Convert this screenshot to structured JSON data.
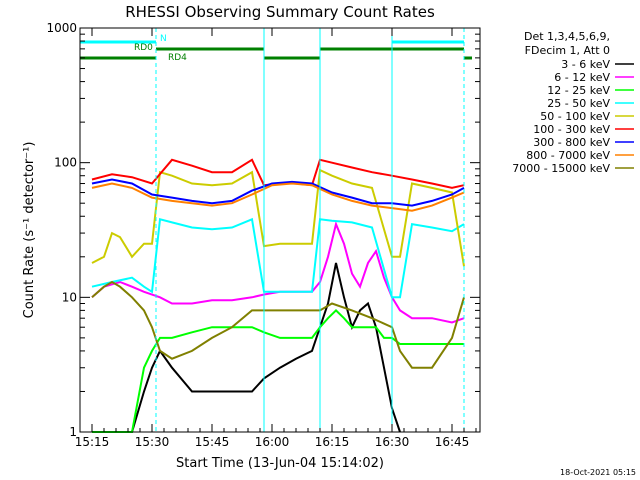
{
  "chart_data": {
    "type": "line",
    "title": "RHESSI Observing Summary Count Rates",
    "xlabel": "Start Time (13-Jun-04 15:14:02)",
    "ylabel": "Count Rate (s⁻¹ detector⁻¹)",
    "yscale": "log",
    "ylim": [
      1,
      1000
    ],
    "xlim_minutes_after_1500": [
      12,
      95
    ],
    "x_ticks": [
      {
        "minutes_after_1500": 15,
        "label": "15:15"
      },
      {
        "minutes_after_1500": 30,
        "label": "15:30"
      },
      {
        "minutes_after_1500": 45,
        "label": "15:45"
      },
      {
        "minutes_after_1500": 60,
        "label": "16:00"
      },
      {
        "minutes_after_1500": 75,
        "label": "16:15"
      },
      {
        "minutes_after_1500": 90,
        "label": "16:30"
      },
      {
        "minutes_after_1500": 105,
        "label": "16:45"
      }
    ],
    "y_ticks": [
      {
        "value": 1,
        "label": "1"
      },
      {
        "value": 10,
        "label": "10"
      },
      {
        "value": 100,
        "label": "100"
      },
      {
        "value": 1000,
        "label": "1000"
      }
    ],
    "legend_header": [
      "Det 1,3,4,5,6,9,",
      "FDecim 1, Att 0"
    ],
    "legend_placement": "right",
    "series": [
      {
        "name": "3 - 6 keV",
        "color": "#000000",
        "t": [
          15,
          20,
          25,
          28,
          30,
          32,
          35,
          40,
          45,
          50,
          55,
          58,
          62,
          66,
          70,
          72,
          74,
          76,
          78,
          80,
          82,
          84,
          86,
          88,
          90,
          92
        ],
        "y": [
          1,
          1,
          1,
          2,
          3,
          4,
          3,
          2,
          2,
          2,
          2,
          2.5,
          3,
          3.5,
          4,
          6,
          9,
          18,
          10,
          6,
          8,
          9,
          6,
          3,
          1.5,
          1
        ]
      },
      {
        "name": "6 - 12 keV",
        "color": "#ff00ff",
        "t": [
          15,
          18,
          22,
          25,
          28,
          32,
          35,
          40,
          45,
          50,
          55,
          58,
          62,
          66,
          70,
          72,
          74,
          76,
          78,
          80,
          82,
          84,
          86,
          88,
          90,
          92,
          95,
          100,
          105,
          108
        ],
        "y": [
          10,
          12,
          13,
          12,
          11,
          10,
          9,
          9,
          9.5,
          9.5,
          10,
          10.5,
          11,
          11,
          11,
          13,
          20,
          35,
          25,
          15,
          12,
          18,
          22,
          14,
          10,
          8,
          7,
          7,
          6.5,
          7
        ]
      },
      {
        "name": "12 - 25 keV",
        "color": "#00ff00",
        "t": [
          15,
          20,
          25,
          28,
          30,
          32,
          35,
          40,
          45,
          50,
          55,
          58,
          62,
          66,
          70,
          72,
          74,
          76,
          78,
          80,
          82,
          84,
          86,
          88,
          90,
          92,
          95,
          100,
          105,
          108
        ],
        "y": [
          1,
          1,
          1,
          3,
          4,
          5,
          5,
          5.5,
          6,
          6,
          6,
          5.5,
          5,
          5,
          5,
          6,
          7,
          8,
          7,
          6,
          6,
          6,
          6,
          5,
          5,
          4.5,
          4.5,
          4.5,
          4.5,
          4.5
        ]
      },
      {
        "name": "25 - 50 keV",
        "color": "#00ffff",
        "t": [
          15,
          20,
          25,
          28,
          30,
          32,
          35,
          40,
          45,
          50,
          55,
          58,
          62,
          66,
          70,
          72,
          75,
          80,
          85,
          90,
          92,
          95,
          100,
          105,
          108
        ],
        "y": [
          12,
          13,
          14,
          12,
          11,
          38,
          36,
          33,
          32,
          33,
          38,
          11,
          11,
          11,
          11,
          38,
          37,
          36,
          33,
          10,
          10,
          35,
          33,
          31,
          35
        ]
      },
      {
        "name": "50 - 100 keV",
        "color": "#cccc00",
        "t": [
          15,
          18,
          20,
          22,
          25,
          28,
          30,
          32,
          35,
          40,
          45,
          50,
          55,
          58,
          62,
          66,
          70,
          72,
          75,
          80,
          85,
          90,
          92,
          95,
          100,
          105,
          108
        ],
        "y": [
          18,
          20,
          30,
          28,
          20,
          25,
          25,
          85,
          80,
          70,
          68,
          70,
          85,
          24,
          25,
          25,
          25,
          88,
          80,
          70,
          65,
          20,
          20,
          70,
          65,
          60,
          17
        ]
      },
      {
        "name": "100 - 300 keV",
        "color": "#ff0000",
        "t": [
          15,
          20,
          25,
          30,
          35,
          40,
          45,
          50,
          55,
          58,
          62,
          66,
          70,
          72,
          75,
          80,
          85,
          90,
          95,
          100,
          105,
          108
        ],
        "y": [
          75,
          82,
          78,
          70,
          105,
          95,
          85,
          85,
          105,
          68,
          70,
          70,
          68,
          105,
          100,
          92,
          85,
          80,
          75,
          70,
          65,
          68
        ]
      },
      {
        "name": "300 - 800 keV",
        "color": "#0000ff",
        "t": [
          15,
          20,
          25,
          30,
          35,
          40,
          45,
          50,
          55,
          60,
          65,
          70,
          75,
          80,
          85,
          90,
          95,
          100,
          105,
          108
        ],
        "y": [
          70,
          75,
          70,
          58,
          55,
          52,
          50,
          52,
          62,
          70,
          72,
          70,
          60,
          55,
          50,
          50,
          48,
          52,
          58,
          65
        ]
      },
      {
        "name": "800 - 7000 keV",
        "color": "#ff8000",
        "t": [
          15,
          20,
          25,
          30,
          35,
          40,
          45,
          50,
          55,
          60,
          65,
          70,
          75,
          80,
          85,
          90,
          95,
          100,
          105,
          108
        ],
        "y": [
          65,
          70,
          65,
          55,
          52,
          50,
          48,
          50,
          58,
          68,
          70,
          68,
          58,
          52,
          48,
          46,
          44,
          48,
          55,
          60
        ]
      },
      {
        "name": "7000 - 15000 keV",
        "color": "#808000",
        "t": [
          15,
          18,
          20,
          22,
          25,
          28,
          30,
          32,
          35,
          40,
          45,
          50,
          55,
          58,
          62,
          66,
          70,
          72,
          75,
          80,
          85,
          90,
          92,
          95,
          100,
          105,
          108
        ],
        "y": [
          10,
          12,
          13,
          12,
          10,
          8,
          6,
          4,
          3.5,
          4,
          5,
          6,
          8,
          8,
          8,
          8,
          8,
          8,
          9,
          8,
          7,
          6,
          4,
          3,
          3,
          5,
          10
        ]
      }
    ],
    "state_bars": [
      {
        "label": "N",
        "color": "#00ffff",
        "segments": [
          [
            12,
            31
          ],
          [
            90,
            108
          ]
        ]
      },
      {
        "label": "RD0",
        "color": "#008000",
        "segments": [
          [
            31,
            58
          ],
          [
            72,
            108
          ]
        ]
      },
      {
        "label": "RD4",
        "color": "#008000",
        "segments": [
          [
            12,
            31
          ],
          [
            58,
            72
          ],
          [
            108,
            110
          ]
        ]
      }
    ],
    "vlines": [
      {
        "minutes_after_1500": 31,
        "color": "#00ffff",
        "style": "dashed"
      },
      {
        "minutes_after_1500": 58,
        "color": "#00ffff",
        "style": "solid"
      },
      {
        "minutes_after_1500": 72,
        "color": "#00ffff",
        "style": "solid"
      },
      {
        "minutes_after_1500": 90,
        "color": "#00ffff",
        "style": "solid"
      },
      {
        "minutes_after_1500": 108,
        "color": "#00ffff",
        "style": "dashed"
      }
    ],
    "grid": false
  },
  "footer_date": "18-Oct-2021 05:15"
}
